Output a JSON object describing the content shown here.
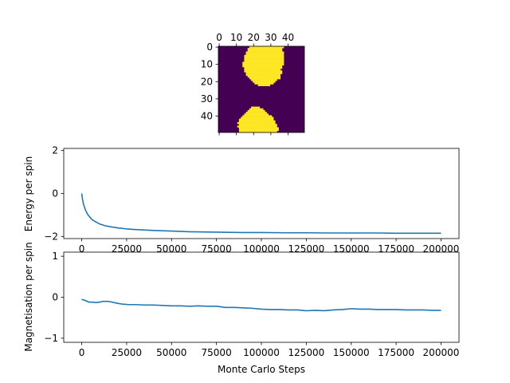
{
  "chart_data": [
    {
      "type": "heatmap",
      "title": "",
      "description": "Ising spin lattice snapshot (50x50), two spin states",
      "xlim": [
        0,
        49
      ],
      "ylim": [
        49,
        0
      ],
      "xticks": [
        0,
        10,
        20,
        30,
        40
      ],
      "yticks": [
        0,
        10,
        20,
        30,
        40
      ],
      "grid_size": 50,
      "colors": {
        "up": "#fde725",
        "down": "#440154"
      },
      "up_rows_top": [
        [
          0,
          18,
          37
        ],
        [
          1,
          17,
          36
        ],
        [
          2,
          17,
          36
        ],
        [
          3,
          16,
          37
        ],
        [
          4,
          16,
          37
        ],
        [
          5,
          15,
          37
        ],
        [
          6,
          15,
          37
        ],
        [
          7,
          15,
          37
        ],
        [
          8,
          15,
          37
        ],
        [
          9,
          14,
          37
        ],
        [
          10,
          14,
          37
        ],
        [
          11,
          14,
          36
        ],
        [
          12,
          15,
          36
        ],
        [
          13,
          15,
          35
        ],
        [
          14,
          15,
          36
        ],
        [
          15,
          16,
          36
        ],
        [
          16,
          16,
          35
        ],
        [
          17,
          17,
          35
        ],
        [
          18,
          18,
          35
        ],
        [
          19,
          19,
          33
        ],
        [
          20,
          20,
          32
        ],
        [
          21,
          21,
          31
        ],
        [
          22,
          23,
          29
        ]
      ],
      "up_rows_bottom": [
        [
          35,
          19,
          23
        ],
        [
          36,
          18,
          25
        ],
        [
          37,
          17,
          26
        ],
        [
          38,
          16,
          27
        ],
        [
          39,
          15,
          28
        ],
        [
          40,
          14,
          30
        ],
        [
          41,
          13,
          31
        ],
        [
          42,
          12,
          31
        ],
        [
          43,
          12,
          32
        ],
        [
          44,
          11,
          32
        ],
        [
          45,
          12,
          33
        ],
        [
          46,
          11,
          33
        ],
        [
          47,
          12,
          34
        ],
        [
          48,
          12,
          34
        ],
        [
          49,
          12,
          33
        ]
      ]
    },
    {
      "type": "line",
      "title": "",
      "xlabel": "",
      "ylabel": "Energy per spin",
      "xlim": [
        -10000,
        210000
      ],
      "ylim": [
        -2.1,
        2.1
      ],
      "xticks": [
        0,
        25000,
        50000,
        75000,
        100000,
        125000,
        150000,
        175000,
        200000
      ],
      "yticks": [
        -2,
        0,
        2
      ],
      "color": "#1f77b4",
      "series": [
        {
          "x": [
            0,
            500,
            1000,
            2000,
            3000,
            4000,
            5000,
            6000,
            8000,
            10000,
            13000,
            16000,
            20000,
            25000,
            30000,
            40000,
            50000,
            60000,
            75000,
            90000,
            100000,
            115000,
            125000,
            140000,
            150000,
            165000,
            175000,
            190000,
            200000
          ],
          "values": [
            0.0,
            -0.3,
            -0.5,
            -0.75,
            -0.93,
            -1.05,
            -1.15,
            -1.23,
            -1.33,
            -1.42,
            -1.5,
            -1.55,
            -1.6,
            -1.65,
            -1.68,
            -1.72,
            -1.75,
            -1.78,
            -1.8,
            -1.82,
            -1.82,
            -1.83,
            -1.83,
            -1.84,
            -1.84,
            -1.84,
            -1.85,
            -1.85,
            -1.85
          ]
        }
      ]
    },
    {
      "type": "line",
      "title": "",
      "xlabel": "Monte Carlo Steps",
      "ylabel": "Magnetisation per spin",
      "xlim": [
        -10000,
        210000
      ],
      "ylim": [
        -1.1,
        1.1
      ],
      "xticks": [
        0,
        25000,
        50000,
        75000,
        100000,
        125000,
        150000,
        175000,
        200000
      ],
      "yticks": [
        -1,
        0,
        1
      ],
      "color": "#1f77b4",
      "series": [
        {
          "x": [
            0,
            2000,
            4000,
            6000,
            8000,
            10000,
            12000,
            14000,
            16000,
            18000,
            20000,
            23000,
            26000,
            30000,
            35000,
            40000,
            45000,
            50000,
            55000,
            60000,
            65000,
            70000,
            75000,
            80000,
            85000,
            90000,
            95000,
            100000,
            105000,
            110000,
            115000,
            120000,
            125000,
            130000,
            135000,
            140000,
            145000,
            150000,
            155000,
            160000,
            165000,
            170000,
            175000,
            180000,
            185000,
            190000,
            195000,
            200000
          ],
          "values": [
            -0.05,
            -0.08,
            -0.12,
            -0.12,
            -0.13,
            -0.12,
            -0.1,
            -0.1,
            -0.11,
            -0.13,
            -0.15,
            -0.17,
            -0.18,
            -0.18,
            -0.19,
            -0.19,
            -0.2,
            -0.21,
            -0.21,
            -0.22,
            -0.21,
            -0.22,
            -0.22,
            -0.25,
            -0.25,
            -0.26,
            -0.27,
            -0.29,
            -0.3,
            -0.3,
            -0.31,
            -0.31,
            -0.33,
            -0.32,
            -0.33,
            -0.31,
            -0.3,
            -0.28,
            -0.29,
            -0.29,
            -0.3,
            -0.3,
            -0.3,
            -0.31,
            -0.31,
            -0.31,
            -0.32,
            -0.32
          ]
        }
      ]
    }
  ]
}
